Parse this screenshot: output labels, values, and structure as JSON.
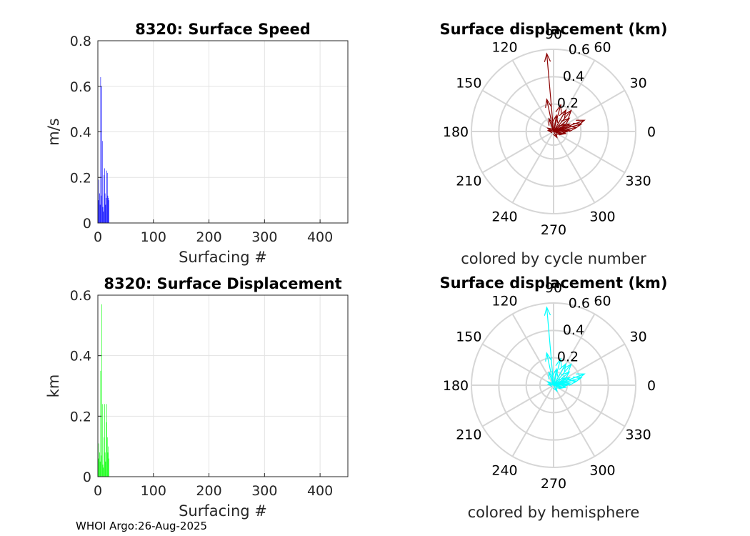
{
  "footer": {
    "credit": "WHOI Argo:26-Aug-2025"
  },
  "chart_data": [
    {
      "type": "bar",
      "title": "8320: Surface Speed",
      "xlabel": "Surfacing #",
      "ylabel": "m/s",
      "xlim": [
        0,
        450
      ],
      "ylim": [
        0,
        0.8
      ],
      "xticks": [
        "0",
        "100",
        "200",
        "300",
        "400"
      ],
      "yticks": [
        "0",
        "0.2",
        "0.4",
        "0.6",
        "0.8"
      ],
      "color": "#0000ff",
      "x": [
        1,
        2,
        3,
        4,
        5,
        6,
        7,
        8,
        9,
        10,
        11,
        12,
        13,
        14,
        15,
        16,
        17,
        18,
        19,
        20
      ],
      "values": [
        0.1,
        0.19,
        0.13,
        0.08,
        0.64,
        0.12,
        0.6,
        0.36,
        0.07,
        0.05,
        0.21,
        0.24,
        0.13,
        0.08,
        0.11,
        0.23,
        0.22,
        0.12,
        0.11,
        0.1
      ]
    },
    {
      "type": "bar",
      "title": "8320: Surface Displacement",
      "xlabel": "Surfacing #",
      "ylabel": "km",
      "xlim": [
        0,
        450
      ],
      "ylim": [
        0,
        0.6
      ],
      "xticks": [
        "0",
        "100",
        "200",
        "300",
        "400"
      ],
      "yticks": [
        "0",
        "0.2",
        "0.4",
        "0.6"
      ],
      "color": "#00ff00",
      "x": [
        1,
        2,
        3,
        4,
        5,
        6,
        7,
        8,
        9,
        10,
        11,
        12,
        13,
        14,
        15,
        16,
        17,
        18,
        19,
        20
      ],
      "values": [
        0.06,
        0.11,
        0.08,
        0.05,
        0.35,
        0.07,
        0.57,
        0.24,
        0.04,
        0.03,
        0.13,
        0.24,
        0.08,
        0.05,
        0.18,
        0.24,
        0.13,
        0.08,
        0.1,
        0.06
      ]
    },
    {
      "type": "polar-vector",
      "title": "Surface displacement (km)",
      "subtitle": "colored by cycle number",
      "color": "#8b0000",
      "rmax": 0.6,
      "rticks": [
        "0.2",
        "0.4",
        "0.6"
      ],
      "angle_labels": [
        "0",
        "30",
        "60",
        "90",
        "120",
        "150",
        "180",
        "210",
        "240",
        "270",
        "300",
        "330"
      ],
      "vectors": [
        {
          "angle_deg": 95,
          "r_km": 0.57
        },
        {
          "angle_deg": 102,
          "r_km": 0.24
        },
        {
          "angle_deg": 75,
          "r_km": 0.2
        },
        {
          "angle_deg": 60,
          "r_km": 0.18
        },
        {
          "angle_deg": 50,
          "r_km": 0.2
        },
        {
          "angle_deg": 40,
          "r_km": 0.15
        },
        {
          "angle_deg": 20,
          "r_km": 0.24
        },
        {
          "angle_deg": 15,
          "r_km": 0.21
        },
        {
          "angle_deg": 10,
          "r_km": 0.17
        },
        {
          "angle_deg": 5,
          "r_km": 0.12
        },
        {
          "angle_deg": 0,
          "r_km": 0.1
        },
        {
          "angle_deg": 350,
          "r_km": 0.09
        },
        {
          "angle_deg": 340,
          "r_km": 0.06
        },
        {
          "angle_deg": 300,
          "r_km": 0.05
        },
        {
          "angle_deg": 80,
          "r_km": 0.12
        },
        {
          "angle_deg": 110,
          "r_km": 0.1
        },
        {
          "angle_deg": 150,
          "r_km": 0.05
        },
        {
          "angle_deg": 170,
          "r_km": 0.04
        },
        {
          "angle_deg": 30,
          "r_km": 0.1
        },
        {
          "angle_deg": 25,
          "r_km": 0.13
        }
      ]
    },
    {
      "type": "polar-vector",
      "title": "Surface displacement (km)",
      "subtitle": "colored by hemisphere",
      "color": "#00ffff",
      "rmax": 0.6,
      "rticks": [
        "0.2",
        "0.4",
        "0.6"
      ],
      "angle_labels": [
        "0",
        "30",
        "60",
        "90",
        "120",
        "150",
        "180",
        "210",
        "240",
        "270",
        "300",
        "330"
      ],
      "vectors": [
        {
          "angle_deg": 95,
          "r_km": 0.57
        },
        {
          "angle_deg": 102,
          "r_km": 0.24
        },
        {
          "angle_deg": 75,
          "r_km": 0.2
        },
        {
          "angle_deg": 60,
          "r_km": 0.18
        },
        {
          "angle_deg": 50,
          "r_km": 0.2
        },
        {
          "angle_deg": 40,
          "r_km": 0.15
        },
        {
          "angle_deg": 20,
          "r_km": 0.24
        },
        {
          "angle_deg": 15,
          "r_km": 0.21
        },
        {
          "angle_deg": 10,
          "r_km": 0.17
        },
        {
          "angle_deg": 5,
          "r_km": 0.12
        },
        {
          "angle_deg": 0,
          "r_km": 0.1
        },
        {
          "angle_deg": 350,
          "r_km": 0.09
        },
        {
          "angle_deg": 340,
          "r_km": 0.06
        },
        {
          "angle_deg": 300,
          "r_km": 0.05
        },
        {
          "angle_deg": 80,
          "r_km": 0.12
        },
        {
          "angle_deg": 110,
          "r_km": 0.1
        },
        {
          "angle_deg": 150,
          "r_km": 0.05
        },
        {
          "angle_deg": 170,
          "r_km": 0.04
        },
        {
          "angle_deg": 30,
          "r_km": 0.1
        },
        {
          "angle_deg": 25,
          "r_km": 0.13
        }
      ]
    }
  ]
}
